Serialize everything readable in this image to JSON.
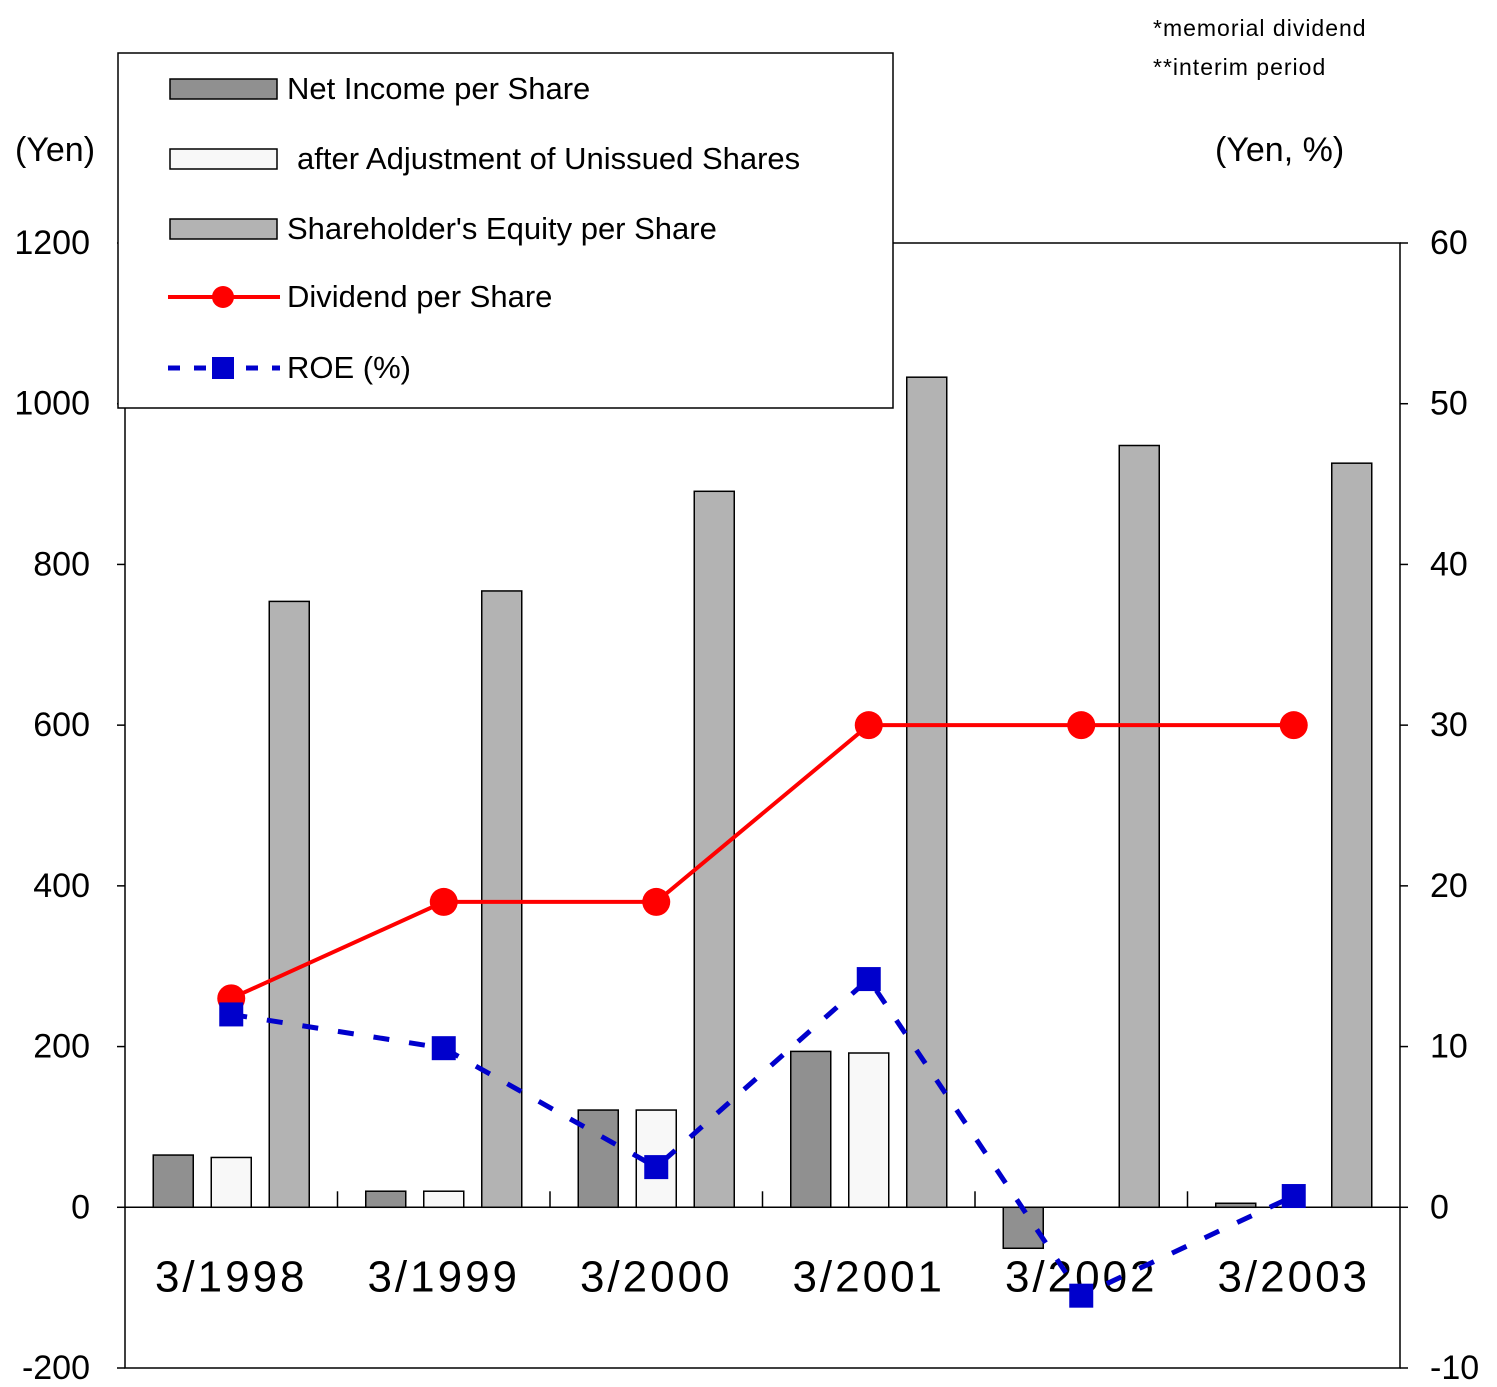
{
  "chart_data": {
    "type": "bar",
    "notes": [
      "*memorial dividend",
      "**interim period"
    ],
    "ylabel": "(Yen)",
    "y2label": "(Yen, %)",
    "categories": [
      "3/1998",
      "3/1999",
      "3/2000",
      "3/2001",
      "3/2002",
      "3/2003"
    ],
    "series": [
      {
        "name": "Net Income per Share",
        "color": "#909090",
        "values": [
          65,
          20,
          121,
          194,
          -51,
          5
        ]
      },
      {
        "name": "after Adjustment of Unissued Shares",
        "color": "#f8f8f8",
        "values": [
          62,
          20,
          121,
          192,
          null,
          null
        ]
      },
      {
        "name": "Shareholder's Equity per Share",
        "color": "#b3b3b3",
        "values": [
          754,
          767,
          891,
          1033,
          948,
          926
        ]
      },
      {
        "name": "Dividend per Share",
        "type": "line",
        "axis": "y2",
        "color": "#ff0000",
        "values": [
          13,
          19,
          19,
          30,
          30,
          30
        ]
      },
      {
        "name": "ROE (%)",
        "type": "line",
        "axis": "y2",
        "color": "#0000cc",
        "dashed": true,
        "values": [
          12,
          9.9,
          2.5,
          14.2,
          -5.5,
          0.7
        ]
      }
    ],
    "ylim": [
      -200,
      1200
    ],
    "yticks": [
      -200,
      0,
      200,
      400,
      600,
      800,
      1000,
      1200
    ],
    "y2lim": [
      -10,
      60
    ],
    "y2ticks": [
      -10,
      0,
      10,
      20,
      30,
      40,
      50,
      60
    ]
  }
}
